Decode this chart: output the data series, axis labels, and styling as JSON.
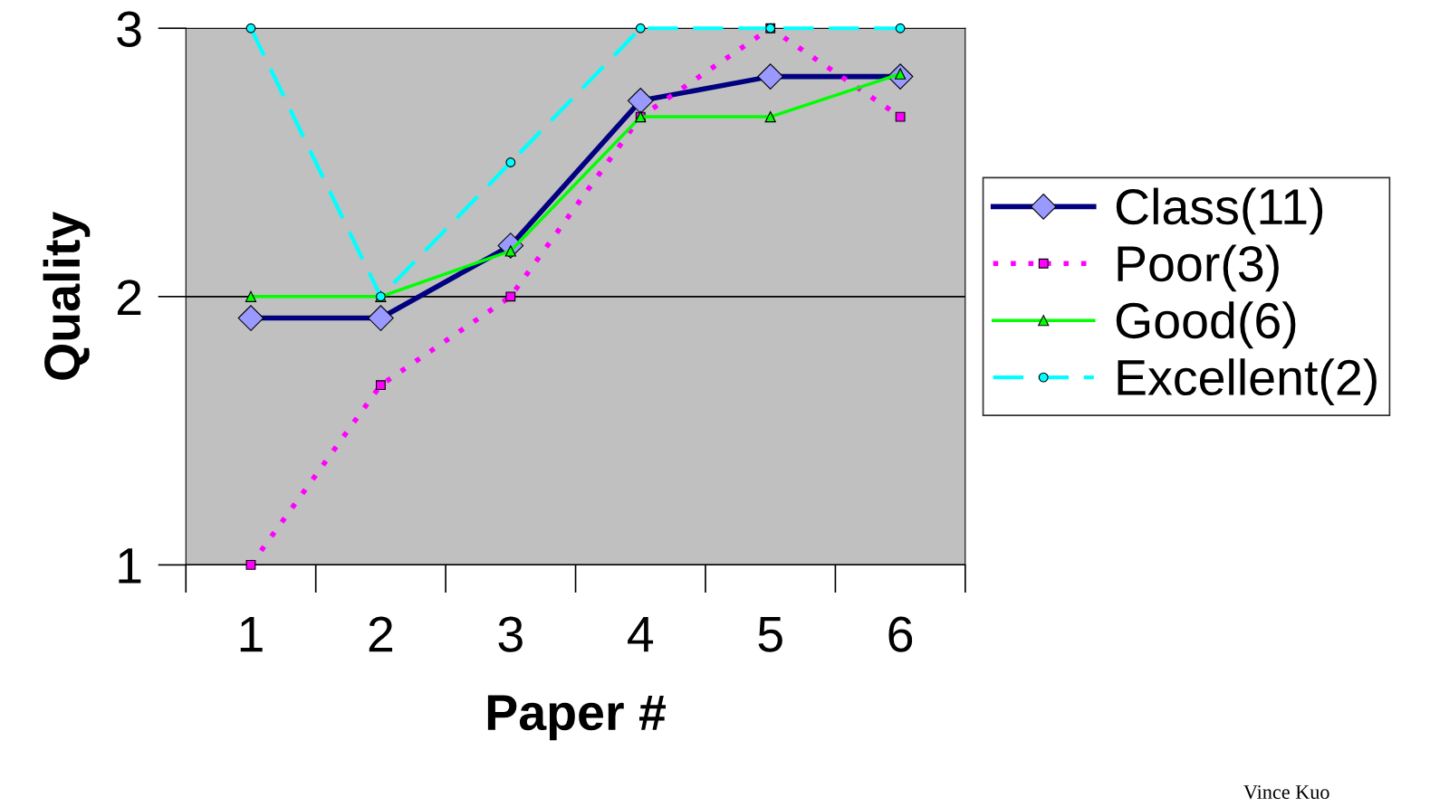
{
  "chart_data": {
    "type": "line",
    "xlabel": "Paper #",
    "ylabel": "Quality",
    "categories": [
      "1",
      "2",
      "3",
      "4",
      "5",
      "6"
    ],
    "series": [
      {
        "name": "Class(11)",
        "color": "#000080",
        "values": [
          1.92,
          1.92,
          2.19,
          2.73,
          2.82,
          2.82
        ],
        "marker": "diamond",
        "line_style": "solid"
      },
      {
        "name": "Poor(3)",
        "color": "#ff00ff",
        "values": [
          1,
          1.67,
          2,
          2.67,
          3,
          2.67
        ],
        "marker": "square",
        "line_style": "dotted"
      },
      {
        "name": "Good(6)",
        "color": "#00ff00",
        "values": [
          2,
          2,
          2.17,
          2.67,
          2.67,
          2.83
        ],
        "marker": "triangle",
        "line_style": "solid"
      },
      {
        "name": "Excellent(2)",
        "color": "#00ffff",
        "values": [
          3,
          2,
          2.5,
          3,
          3,
          3
        ],
        "marker": "circle",
        "line_style": "dashed"
      }
    ],
    "ylim": [
      1,
      3
    ],
    "yticks": [
      1,
      2,
      3
    ],
    "grid": "y",
    "legend": "right",
    "annotations": [
      "Vince Kuo"
    ]
  }
}
